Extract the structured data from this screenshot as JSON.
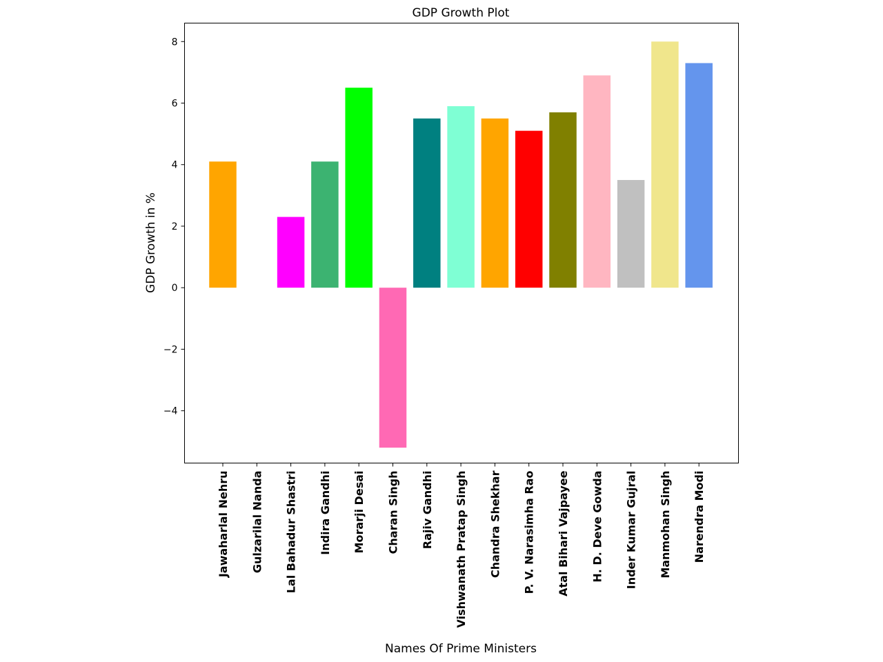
{
  "chart_data": {
    "type": "bar",
    "title": "GDP Growth Plot",
    "xlabel": "Names Of Prime Ministers",
    "ylabel": "GDP Growth in %",
    "ylim": [
      -5.7,
      8.6
    ],
    "yticks": [
      -4,
      -2,
      0,
      2,
      4,
      6,
      8
    ],
    "ytick_labels": [
      "−4",
      "−2",
      "0",
      "2",
      "4",
      "6",
      "8"
    ],
    "grid": false,
    "categories": [
      "Jawaharlal Nehru",
      "Gulzarilal Nanda",
      "Lal Bahadur Shastri",
      "Indira Gandhi",
      "Morarji Desai",
      "Charan Singh",
      "Rajiv Gandhi",
      "Vishwanath Pratap Singh",
      "Chandra Shekhar",
      "P. V. Narasimha Rao",
      "Atal Bihari Vajpayee",
      "H. D. Deve Gowda",
      "Inder Kumar Gujral",
      "Manmohan Singh",
      "Narendra Modi"
    ],
    "values": [
      4.1,
      0,
      2.3,
      4.1,
      6.5,
      -5.2,
      5.5,
      5.9,
      5.5,
      5.1,
      5.7,
      6.9,
      3.5,
      8.0,
      7.3
    ],
    "colors": [
      "#ffa500",
      "#ffffff",
      "#ff00ff",
      "#3cb371",
      "#00ff00",
      "#ff69b4",
      "#008080",
      "#7fffd4",
      "#ffa500",
      "#ff0000",
      "#808000",
      "#ffb6c1",
      "#c0c0c0",
      "#f0e68c",
      "#6495ed"
    ]
  }
}
